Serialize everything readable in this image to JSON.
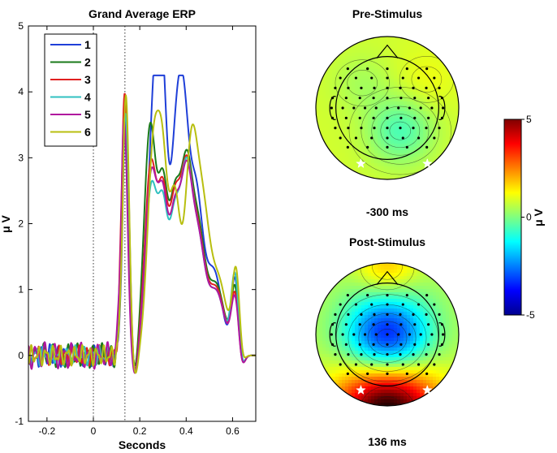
{
  "chart_data": [
    {
      "type": "line",
      "title": "Grand Average ERP",
      "xlabel": "Seconds",
      "ylabel": "μ V",
      "xlim": [
        -0.28,
        0.7
      ],
      "ylim": [
        -1,
        5
      ],
      "xticks": [
        -0.2,
        0,
        0.2,
        0.4,
        0.6
      ],
      "xtick_labels": [
        "-0.2",
        "0",
        "0.2",
        "0.4",
        "0.6"
      ],
      "yticks": [
        -1,
        0,
        1,
        2,
        3,
        4,
        5
      ],
      "ytick_labels": [
        "-1",
        "0",
        "1",
        "2",
        "3",
        "4",
        "5"
      ],
      "vlines": [
        0,
        0.136
      ],
      "legend_position": "top-left",
      "series": [
        {
          "name": "1",
          "color": "#1f3fd8",
          "noise_amp": 0.11,
          "noise_freq": 31,
          "noise_phase": 0.4,
          "peaks": [
            [
              0.14,
              3.75,
              0.014
            ],
            [
              0.265,
              4.08,
              0.028
            ],
            [
              0.3,
              2.6,
              0.02
            ],
            [
              0.355,
              2.95,
              0.024
            ],
            [
              0.39,
              2.55,
              0.022
            ],
            [
              0.44,
              2.45,
              0.03
            ],
            [
              0.52,
              1.25,
              0.035
            ],
            [
              0.61,
              1.15,
              0.016
            ]
          ]
        },
        {
          "name": "2",
          "color": "#1a7a1a",
          "noise_amp": 0.12,
          "noise_freq": 28,
          "noise_phase": 1.3,
          "peaks": [
            [
              0.138,
              3.92,
              0.014
            ],
            [
              0.245,
              3.48,
              0.026
            ],
            [
              0.3,
              2.2,
              0.02
            ],
            [
              0.35,
              2.25,
              0.024
            ],
            [
              0.4,
              2.4,
              0.024
            ],
            [
              0.45,
              1.85,
              0.03
            ],
            [
              0.53,
              1.05,
              0.035
            ],
            [
              0.61,
              1.0,
              0.016
            ]
          ]
        },
        {
          "name": "3",
          "color": "#e02020",
          "noise_amp": 0.1,
          "noise_freq": 34,
          "noise_phase": 2.1,
          "peaks": [
            [
              0.135,
              3.98,
              0.014
            ],
            [
              0.248,
              2.9,
              0.026
            ],
            [
              0.3,
              2.05,
              0.02
            ],
            [
              0.35,
              2.2,
              0.024
            ],
            [
              0.4,
              2.35,
              0.024
            ],
            [
              0.45,
              1.75,
              0.03
            ],
            [
              0.53,
              1.0,
              0.035
            ],
            [
              0.61,
              0.9,
              0.016
            ]
          ]
        },
        {
          "name": "4",
          "color": "#30c0c0",
          "noise_amp": 0.1,
          "noise_freq": 29,
          "noise_phase": 3.0,
          "peaks": [
            [
              0.137,
              3.68,
              0.014
            ],
            [
              0.25,
              2.55,
              0.026
            ],
            [
              0.3,
              1.85,
              0.02
            ],
            [
              0.35,
              2.0,
              0.024
            ],
            [
              0.4,
              2.35,
              0.024
            ],
            [
              0.45,
              1.7,
              0.03
            ],
            [
              0.53,
              0.95,
              0.035
            ],
            [
              0.61,
              1.2,
              0.016
            ]
          ]
        },
        {
          "name": "5",
          "color": "#b0169e",
          "noise_amp": 0.13,
          "noise_freq": 26,
          "noise_phase": 4.2,
          "peaks": [
            [
              0.133,
              3.55,
              0.014
            ],
            [
              0.25,
              2.75,
              0.026
            ],
            [
              0.3,
              1.95,
              0.02
            ],
            [
              0.35,
              2.05,
              0.024
            ],
            [
              0.4,
              2.3,
              0.024
            ],
            [
              0.45,
              1.7,
              0.03
            ],
            [
              0.53,
              0.95,
              0.035
            ],
            [
              0.61,
              0.85,
              0.016
            ]
          ]
        },
        {
          "name": "6",
          "color": "#b8bf10",
          "noise_amp": 0.1,
          "noise_freq": 32,
          "noise_phase": 5.0,
          "peaks": [
            [
              0.14,
              3.95,
              0.014
            ],
            [
              0.26,
              3.2,
              0.026
            ],
            [
              0.3,
              2.15,
              0.02
            ],
            [
              0.35,
              2.4,
              0.024
            ],
            [
              0.42,
              2.85,
              0.026
            ],
            [
              0.47,
              2.05,
              0.03
            ],
            [
              0.54,
              1.1,
              0.035
            ],
            [
              0.615,
              1.25,
              0.016
            ]
          ]
        }
      ]
    },
    {
      "type": "heatmap",
      "title": "Pre-Stimulus",
      "caption": "-300 ms",
      "colormap": "jet",
      "clim": [
        -5,
        5
      ],
      "field": {
        "base": 0.8,
        "blobs": [
          {
            "cx": 0.18,
            "cy": -0.32,
            "amp": -1.3,
            "s": 0.32
          },
          {
            "cx": -0.35,
            "cy": 0.35,
            "amp": -0.4,
            "s": 0.3
          },
          {
            "cx": 0.55,
            "cy": 0.4,
            "amp": 0.3,
            "s": 0.3
          }
        ]
      },
      "star_markers": 2
    },
    {
      "type": "heatmap",
      "title": "Post-Stimulus",
      "caption": "136 ms",
      "colormap": "jet",
      "clim": [
        -5,
        5
      ],
      "field": {
        "base": 0.5,
        "blobs": [
          {
            "cx": 0.0,
            "cy": -0.05,
            "amp": -4.4,
            "s": 0.42
          },
          {
            "cx": 0.0,
            "cy": -1.05,
            "amp": 5.8,
            "s": 0.5
          },
          {
            "cx": 0.0,
            "cy": 0.95,
            "amp": 1.4,
            "s": 0.3
          }
        ]
      },
      "star_markers": 2
    },
    {
      "type": "colorbar",
      "label": "μ V",
      "colormap": "jet",
      "ticks": [
        5,
        0,
        -5
      ],
      "tick_labels": [
        "5",
        "0",
        "-5"
      ]
    }
  ]
}
